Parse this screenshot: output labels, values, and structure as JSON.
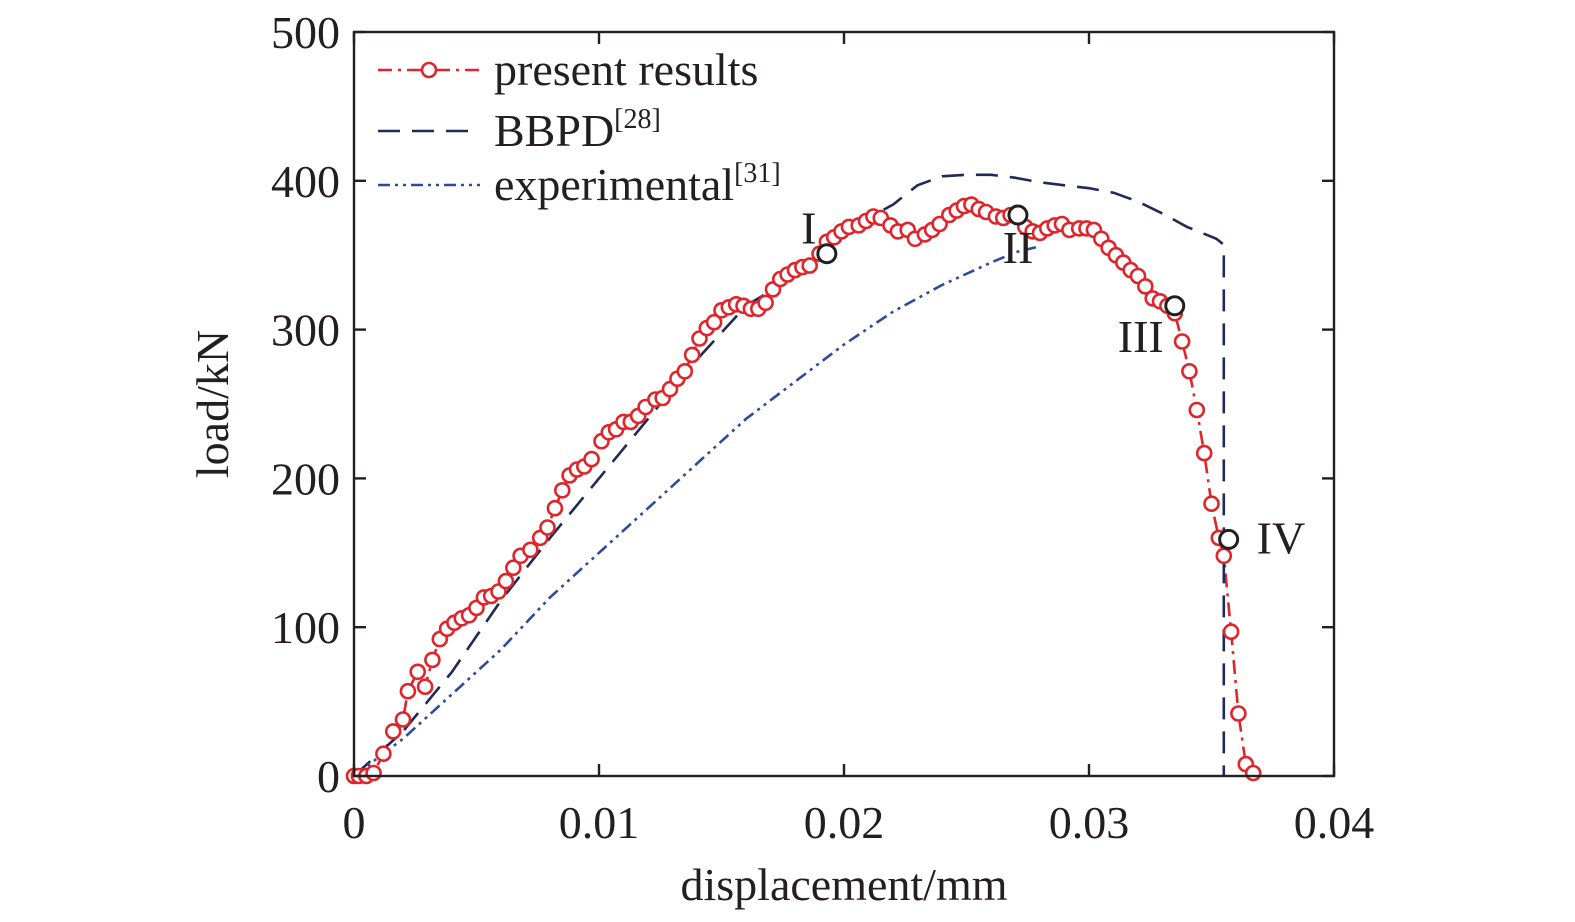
{
  "chart_data": {
    "type": "line",
    "title": "",
    "xlabel": "displacement/mm",
    "ylabel": "load/kN",
    "xlim": [
      0,
      0.04
    ],
    "ylim": [
      0,
      500
    ],
    "x_ticks": [
      0,
      0.01,
      0.02,
      0.03,
      0.04
    ],
    "x_tick_labels": [
      "0",
      "0.01",
      "0.02",
      "0.03",
      "0.04"
    ],
    "y_ticks": [
      0,
      100,
      200,
      300,
      400,
      500
    ],
    "y_tick_labels": [
      "0",
      "100",
      "200",
      "300",
      "400",
      "500"
    ],
    "grid": false,
    "legend_position": "top-left",
    "series": [
      {
        "name": "present results",
        "ref": "",
        "color": "#e0242b",
        "style": "dash-dot-circle",
        "points": [
          [
            0,
            0
          ],
          [
            0.0002,
            0
          ],
          [
            0.0005,
            0
          ],
          [
            0.0008,
            2
          ],
          [
            0.0012,
            15
          ],
          [
            0.0016,
            30
          ],
          [
            0.002,
            38
          ],
          [
            0.0022,
            57
          ],
          [
            0.0026,
            70
          ],
          [
            0.0029,
            60
          ],
          [
            0.0032,
            78
          ],
          [
            0.0035,
            92
          ],
          [
            0.0038,
            99
          ],
          [
            0.0041,
            103
          ],
          [
            0.0044,
            106
          ],
          [
            0.0047,
            108
          ],
          [
            0.005,
            113
          ],
          [
            0.0053,
            120
          ],
          [
            0.0056,
            121
          ],
          [
            0.0059,
            124
          ],
          [
            0.0062,
            131
          ],
          [
            0.0065,
            140
          ],
          [
            0.0068,
            148
          ],
          [
            0.0072,
            152
          ],
          [
            0.0076,
            160
          ],
          [
            0.0079,
            167
          ],
          [
            0.0082,
            180
          ],
          [
            0.0085,
            192
          ],
          [
            0.0088,
            202
          ],
          [
            0.0091,
            206
          ],
          [
            0.0094,
            208
          ],
          [
            0.0097,
            213
          ],
          [
            0.0101,
            225
          ],
          [
            0.0104,
            231
          ],
          [
            0.0107,
            233
          ],
          [
            0.011,
            238
          ],
          [
            0.0113,
            238
          ],
          [
            0.0116,
            242
          ],
          [
            0.0119,
            248
          ],
          [
            0.0123,
            253
          ],
          [
            0.0126,
            254
          ],
          [
            0.0129,
            260
          ],
          [
            0.0132,
            267
          ],
          [
            0.0135,
            272
          ],
          [
            0.0138,
            283
          ],
          [
            0.0141,
            294
          ],
          [
            0.0144,
            301
          ],
          [
            0.0147,
            305
          ],
          [
            0.015,
            313
          ],
          [
            0.0153,
            315
          ],
          [
            0.0156,
            317
          ],
          [
            0.0159,
            316
          ],
          [
            0.0162,
            314
          ],
          [
            0.0165,
            314
          ],
          [
            0.0168,
            318
          ],
          [
            0.0171,
            327
          ],
          [
            0.0174,
            334
          ],
          [
            0.0177,
            337
          ],
          [
            0.018,
            340
          ],
          [
            0.0183,
            342
          ],
          [
            0.0186,
            343
          ],
          [
            0.019,
            351
          ],
          [
            0.0193,
            359
          ],
          [
            0.0196,
            362
          ],
          [
            0.0199,
            366
          ],
          [
            0.0202,
            369
          ],
          [
            0.0206,
            370
          ],
          [
            0.0209,
            373
          ],
          [
            0.0212,
            376
          ],
          [
            0.0215,
            375
          ],
          [
            0.0219,
            370
          ],
          [
            0.0222,
            366
          ],
          [
            0.0226,
            367
          ],
          [
            0.0229,
            361
          ],
          [
            0.0233,
            364
          ],
          [
            0.0236,
            367
          ],
          [
            0.0239,
            371
          ],
          [
            0.0243,
            377
          ],
          [
            0.0246,
            380
          ],
          [
            0.0249,
            383
          ],
          [
            0.0252,
            384
          ],
          [
            0.0255,
            381
          ],
          [
            0.0258,
            379
          ],
          [
            0.0262,
            376
          ],
          [
            0.0265,
            375
          ],
          [
            0.0268,
            377
          ],
          [
            0.0271,
            377
          ],
          [
            0.0274,
            369
          ],
          [
            0.0277,
            366
          ],
          [
            0.028,
            365
          ],
          [
            0.0283,
            368
          ],
          [
            0.0286,
            370
          ],
          [
            0.0289,
            371
          ],
          [
            0.0292,
            367
          ],
          [
            0.0296,
            368
          ],
          [
            0.0299,
            368
          ],
          [
            0.0302,
            367
          ],
          [
            0.0305,
            361
          ],
          [
            0.0308,
            355
          ],
          [
            0.0311,
            350
          ],
          [
            0.0314,
            345
          ],
          [
            0.0317,
            340
          ],
          [
            0.032,
            336
          ],
          [
            0.0323,
            329
          ],
          [
            0.0326,
            321
          ],
          [
            0.0329,
            319
          ],
          [
            0.0332,
            316
          ],
          [
            0.0335,
            311
          ],
          [
            0.0338,
            292
          ],
          [
            0.0341,
            272
          ],
          [
            0.0344,
            246
          ],
          [
            0.0347,
            217
          ],
          [
            0.035,
            183
          ],
          [
            0.0353,
            160
          ],
          [
            0.0355,
            148
          ],
          [
            0.0358,
            97
          ],
          [
            0.0361,
            42
          ],
          [
            0.0364,
            8
          ],
          [
            0.0367,
            2
          ]
        ],
        "marked_points": [
          {
            "label": "I",
            "x": 0.0193,
            "y": 351
          },
          {
            "label": "II",
            "x": 0.0271,
            "y": 377
          },
          {
            "label": "III",
            "x": 0.0335,
            "y": 316
          },
          {
            "label": "IV",
            "x": 0.0357,
            "y": 159
          }
        ]
      },
      {
        "name": "BBPD",
        "ref": "[28]",
        "color": "#1f2a57",
        "style": "dashed",
        "points": [
          [
            0,
            0
          ],
          [
            0.002,
            30
          ],
          [
            0.004,
            70
          ],
          [
            0.006,
            118
          ],
          [
            0.008,
            160
          ],
          [
            0.01,
            200
          ],
          [
            0.012,
            240
          ],
          [
            0.014,
            280
          ],
          [
            0.016,
            316
          ],
          [
            0.018,
            336
          ],
          [
            0.019,
            348
          ],
          [
            0.02,
            365
          ],
          [
            0.021,
            375
          ],
          [
            0.022,
            384
          ],
          [
            0.023,
            397
          ],
          [
            0.024,
            403
          ],
          [
            0.025,
            404
          ],
          [
            0.026,
            404
          ],
          [
            0.027,
            402
          ],
          [
            0.028,
            399
          ],
          [
            0.029,
            397
          ],
          [
            0.03,
            395
          ],
          [
            0.031,
            392
          ],
          [
            0.032,
            386
          ],
          [
            0.033,
            378
          ],
          [
            0.034,
            369
          ],
          [
            0.0352,
            361
          ],
          [
            0.0355,
            357
          ],
          [
            0.0355,
            0
          ]
        ]
      },
      {
        "name": "experimental",
        "ref": "[31]",
        "color": "#2f4a9a",
        "style": "dash-dot-dot",
        "points": [
          [
            0,
            0
          ],
          [
            0.002,
            25
          ],
          [
            0.004,
            55
          ],
          [
            0.006,
            85
          ],
          [
            0.008,
            120
          ],
          [
            0.01,
            150
          ],
          [
            0.012,
            180
          ],
          [
            0.014,
            210
          ],
          [
            0.016,
            240
          ],
          [
            0.018,
            265
          ],
          [
            0.02,
            290
          ],
          [
            0.022,
            312
          ],
          [
            0.024,
            330
          ],
          [
            0.026,
            345
          ],
          [
            0.027,
            352
          ],
          [
            0.028,
            356
          ]
        ]
      }
    ]
  }
}
